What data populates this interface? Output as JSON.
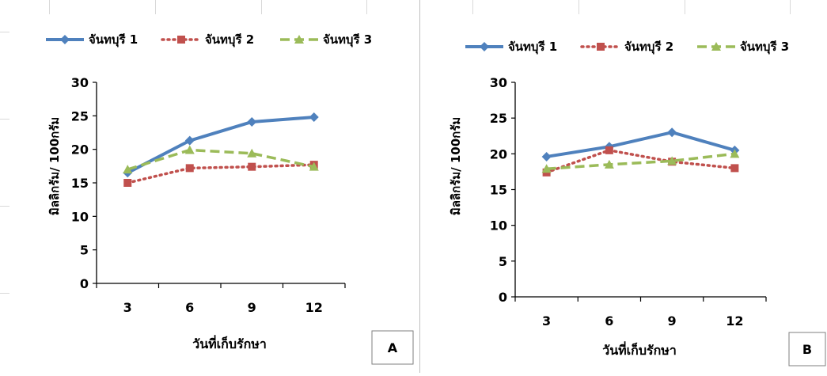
{
  "chart_data": [
    {
      "type": "line",
      "panel_label": "A",
      "xlabel": "วันที่เก็บรักษา",
      "ylabel": "มิลลิกรัม/ 100กรัม",
      "categories": [
        "3",
        "6",
        "9",
        "12"
      ],
      "ylim": [
        0,
        30
      ],
      "yticks": [
        0,
        5,
        10,
        15,
        20,
        25,
        30
      ],
      "grid": false,
      "legend": "top",
      "series": [
        {
          "name": "จันทบุรี 1",
          "values": [
            16.5,
            21.3,
            24.1,
            24.8
          ],
          "color": "#4f81bd",
          "style": "solid",
          "marker": "diamond"
        },
        {
          "name": "จันทบุรี 2",
          "values": [
            15.0,
            17.2,
            17.4,
            17.7
          ],
          "color": "#c0504d",
          "style": "dotted",
          "marker": "square"
        },
        {
          "name": "จันทบุรี 3",
          "values": [
            17.0,
            19.9,
            19.4,
            17.4
          ],
          "color": "#9bbb59",
          "style": "dashed",
          "marker": "triangle"
        }
      ]
    },
    {
      "type": "line",
      "panel_label": "B",
      "xlabel": "วันที่เก็บรักษา",
      "ylabel": "มิลลิกรัม/ 100กรัม",
      "categories": [
        "3",
        "6",
        "9",
        "12"
      ],
      "ylim": [
        0,
        30
      ],
      "yticks": [
        0,
        5,
        10,
        15,
        20,
        25,
        30
      ],
      "grid": false,
      "legend": "top",
      "series": [
        {
          "name": "จันทบุรี 1",
          "values": [
            19.6,
            21.0,
            23.0,
            20.5
          ],
          "color": "#4f81bd",
          "style": "solid",
          "marker": "diamond"
        },
        {
          "name": "จันทบุรี 2",
          "values": [
            17.4,
            20.5,
            18.9,
            18.0
          ],
          "color": "#c0504d",
          "style": "dotted",
          "marker": "square"
        },
        {
          "name": "จันทบุรี 3",
          "values": [
            17.9,
            18.5,
            19.0,
            20.0
          ],
          "color": "#9bbb59",
          "style": "dashed",
          "marker": "triangle"
        }
      ]
    }
  ]
}
